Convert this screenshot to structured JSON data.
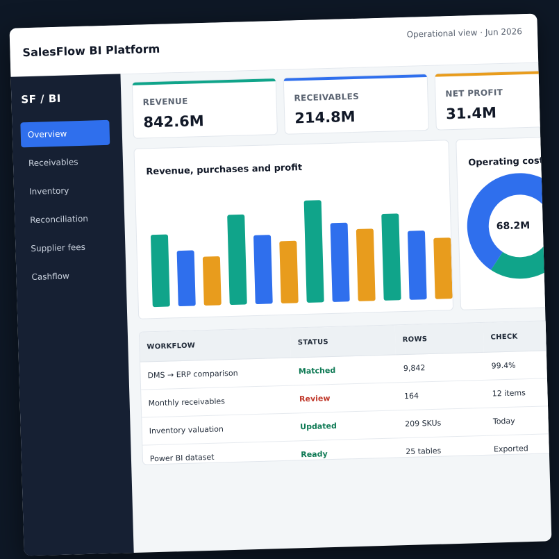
{
  "window": {
    "title": "SalesFlow BI Platform",
    "meta": "Operational view · Jun 2026"
  },
  "sidebar": {
    "brand": "SF / BI",
    "items": [
      {
        "label": "Overview",
        "active": true
      },
      {
        "label": "Receivables"
      },
      {
        "label": "Inventory"
      },
      {
        "label": "Reconciliation"
      },
      {
        "label": "Supplier fees"
      },
      {
        "label": "Cashflow"
      }
    ]
  },
  "kpis": [
    {
      "label": "REVENUE",
      "value": "842.6M",
      "color": "#10a48a"
    },
    {
      "label": "RECEIVABLES",
      "value": "214.8M",
      "color": "#2f6fed"
    },
    {
      "label": "NET PROFIT",
      "value": "31.4M",
      "color": "#e89c1d"
    }
  ],
  "bar_chart": {
    "title": "Revenue, purchases and profit"
  },
  "donut": {
    "title": "Operating cost",
    "center_value": "68.2M"
  },
  "chart_data": [
    {
      "type": "bar",
      "title": "Revenue, purchases and profit",
      "series_colors": [
        "#10a48a",
        "#2f6fed",
        "#e89c1d"
      ],
      "groups": [
        {
          "values": [
            65,
            50,
            44
          ]
        },
        {
          "values": [
            81,
            62,
            56
          ]
        },
        {
          "values": [
            92,
            71,
            65
          ]
        },
        {
          "values": [
            78,
            62,
            55
          ]
        }
      ],
      "ylim": [
        0,
        100
      ],
      "grid": false
    },
    {
      "type": "pie",
      "title": "Operating cost",
      "center_label": "68.2M",
      "slices": [
        {
          "value": 60,
          "color": "#2f6fed"
        },
        {
          "value": 40,
          "color": "#10a48a"
        }
      ]
    }
  ],
  "table": {
    "headers": [
      "WORKFLOW",
      "STATUS",
      "ROWS",
      "CHECK"
    ],
    "rows": [
      {
        "workflow": "DMS → ERP comparison",
        "status": "Matched",
        "status_color": "#0f7a55",
        "rows": "9,842",
        "check": "99.4%"
      },
      {
        "workflow": "Monthly receivables",
        "status": "Review",
        "status_color": "#c0392b",
        "rows": "164",
        "check": "12 items"
      },
      {
        "workflow": "Inventory valuation",
        "status": "Updated",
        "status_color": "#0f7a55",
        "rows": "209 SKUs",
        "check": "Today"
      },
      {
        "workflow": "Power BI dataset",
        "status": "Ready",
        "status_color": "#0f7a55",
        "rows": "25 tables",
        "check": "Exported"
      }
    ]
  }
}
